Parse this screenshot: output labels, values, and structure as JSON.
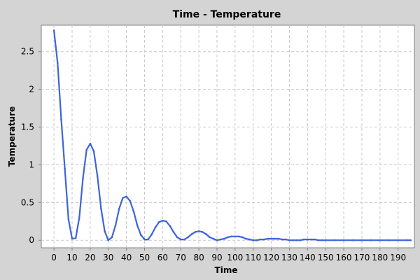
{
  "chart_data": {
    "type": "line",
    "title": "Time - Temperature",
    "xlabel": "Time",
    "ylabel": "Temperature",
    "xlim": [
      -7,
      199
    ],
    "ylim": [
      -0.1,
      2.85
    ],
    "x_ticks": [
      0,
      10,
      20,
      30,
      40,
      50,
      60,
      70,
      80,
      90,
      100,
      110,
      120,
      130,
      140,
      150,
      160,
      170,
      180,
      190
    ],
    "y_ticks": [
      0,
      0.5,
      1,
      1.5,
      2,
      2.5
    ],
    "y_tick_labels": [
      "0",
      "0.5",
      "1",
      "1.5",
      "2",
      "2.5"
    ],
    "grid": true,
    "colors": {
      "background": "#d4d4d4",
      "plot_background": "#ffffff",
      "grid": "#c8c8c8",
      "series": "#3c64dc"
    },
    "series": [
      {
        "name": "",
        "x": [
          0,
          2,
          4,
          6,
          8,
          10,
          12,
          14,
          16,
          18,
          20,
          22,
          24,
          26,
          28,
          30,
          32,
          34,
          36,
          38,
          40,
          42,
          44,
          46,
          48,
          50,
          52,
          54,
          56,
          58,
          60,
          62,
          64,
          66,
          68,
          70,
          72,
          74,
          76,
          78,
          80,
          82,
          84,
          86,
          88,
          90,
          92,
          94,
          96,
          98,
          100,
          102,
          104,
          106,
          108,
          110,
          112,
          114,
          116,
          118,
          120,
          122,
          124,
          126,
          128,
          130,
          132,
          134,
          136,
          138,
          140,
          142,
          144,
          146,
          148,
          150,
          155,
          160,
          165,
          170,
          175,
          180,
          185,
          190,
          195,
          197
        ],
        "values": [
          2.78,
          2.35,
          1.6,
          0.95,
          0.28,
          0.02,
          0.03,
          0.3,
          0.82,
          1.2,
          1.28,
          1.18,
          0.85,
          0.42,
          0.12,
          0.0,
          0.04,
          0.2,
          0.42,
          0.56,
          0.58,
          0.52,
          0.38,
          0.2,
          0.07,
          0.01,
          0.01,
          0.08,
          0.17,
          0.24,
          0.26,
          0.25,
          0.19,
          0.11,
          0.04,
          0.01,
          0.01,
          0.04,
          0.08,
          0.11,
          0.12,
          0.11,
          0.08,
          0.04,
          0.02,
          0.0,
          0.01,
          0.02,
          0.04,
          0.05,
          0.05,
          0.05,
          0.04,
          0.02,
          0.01,
          0.0,
          0.0,
          0.01,
          0.01,
          0.02,
          0.02,
          0.02,
          0.02,
          0.01,
          0.01,
          0.0,
          0.0,
          0.0,
          0.0,
          0.01,
          0.01,
          0.01,
          0.01,
          0.0,
          0.0,
          0.0,
          0.0,
          0.0,
          0.0,
          0.0,
          0.0,
          0.0,
          0.0,
          0.0,
          0.0,
          0.0
        ]
      }
    ]
  }
}
